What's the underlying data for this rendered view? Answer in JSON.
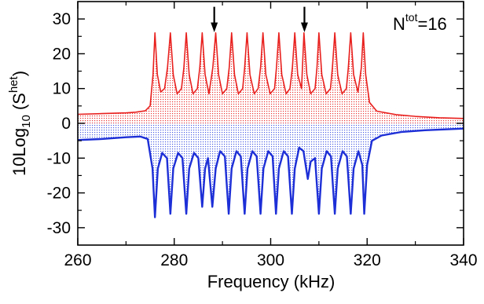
{
  "chart_data": {
    "type": "line",
    "xlabel": "Frequency (kHz)",
    "ylabel": {
      "main": "10Log",
      "sub": "10",
      "paren_open": "(S",
      "sup": "het",
      "paren_close": ")"
    },
    "xlim": [
      260,
      340
    ],
    "ylim": [
      -35,
      35
    ],
    "x_ticks": [
      260,
      280,
      300,
      320,
      340
    ],
    "y_ticks": [
      -30,
      -20,
      -10,
      0,
      10,
      20,
      30
    ],
    "grid": false,
    "annotation": {
      "base": "N",
      "sup": "tot",
      "rest": "=16"
    },
    "arrows_at_x": [
      288.3,
      307.0
    ],
    "fill_baseline": 0,
    "series": [
      {
        "color": "#e8201e",
        "fill_color": "#e8201e",
        "points": [
          [
            260,
            2.6
          ],
          [
            265,
            2.8
          ],
          [
            270,
            3.0
          ],
          [
            272,
            3.2
          ],
          [
            274,
            3.6
          ],
          [
            275,
            5.0
          ],
          [
            275.6,
            14
          ],
          [
            276,
            26
          ],
          [
            276.5,
            14
          ],
          [
            277.2,
            9
          ],
          [
            278.0,
            10
          ],
          [
            278.6,
            16
          ],
          [
            279.2,
            26
          ],
          [
            279.8,
            14
          ],
          [
            280.6,
            8.5
          ],
          [
            281.5,
            10
          ],
          [
            282.0,
            16
          ],
          [
            282.5,
            26
          ],
          [
            283.1,
            14
          ],
          [
            283.9,
            8.5
          ],
          [
            284.8,
            10
          ],
          [
            285.3,
            16
          ],
          [
            285.8,
            26
          ],
          [
            286.4,
            14
          ],
          [
            287.2,
            8.5
          ],
          [
            288.0,
            16
          ],
          [
            288.6,
            26
          ],
          [
            289.2,
            14
          ],
          [
            290.0,
            8.5
          ],
          [
            290.9,
            10
          ],
          [
            291.4,
            16
          ],
          [
            291.9,
            26
          ],
          [
            292.5,
            14
          ],
          [
            293.3,
            8.5
          ],
          [
            294.2,
            10
          ],
          [
            294.6,
            16
          ],
          [
            295.1,
            26
          ],
          [
            295.7,
            14
          ],
          [
            296.6,
            8.5
          ],
          [
            297.4,
            10
          ],
          [
            297.9,
            16
          ],
          [
            298.4,
            26
          ],
          [
            299.0,
            14
          ],
          [
            299.9,
            8.5
          ],
          [
            300.8,
            10
          ],
          [
            301.2,
            16
          ],
          [
            301.7,
            26
          ],
          [
            302.3,
            14
          ],
          [
            303.2,
            8.5
          ],
          [
            304.0,
            10
          ],
          [
            304.5,
            16
          ],
          [
            305.0,
            26
          ],
          [
            305.6,
            14
          ],
          [
            306.4,
            10
          ],
          [
            306.9,
            26
          ],
          [
            307.5,
            14
          ],
          [
            308.3,
            8.5
          ],
          [
            309.2,
            10
          ],
          [
            309.6,
            16
          ],
          [
            310.0,
            26
          ],
          [
            310.6,
            14
          ],
          [
            311.5,
            8.5
          ],
          [
            312.4,
            10
          ],
          [
            312.8,
            16
          ],
          [
            313.3,
            26
          ],
          [
            313.9,
            14
          ],
          [
            314.8,
            8.5
          ],
          [
            315.7,
            10
          ],
          [
            316.1,
            16
          ],
          [
            316.6,
            26
          ],
          [
            317.2,
            14
          ],
          [
            318.1,
            9
          ],
          [
            318.8,
            16
          ],
          [
            319.2,
            26
          ],
          [
            319.7,
            14
          ],
          [
            320.5,
            6
          ],
          [
            322,
            3.5
          ],
          [
            326,
            2.5
          ],
          [
            330,
            2.0
          ],
          [
            335,
            1.6
          ],
          [
            340,
            1.4
          ]
        ]
      },
      {
        "color": "#1d2fd6",
        "fill_color": "#3a4fe0",
        "points": [
          [
            260,
            -4.8
          ],
          [
            265,
            -4.5
          ],
          [
            270,
            -4.0
          ],
          [
            273,
            -3.8
          ],
          [
            274.5,
            -4.5
          ],
          [
            275.5,
            -13
          ],
          [
            276,
            -27
          ],
          [
            276.6,
            -13
          ],
          [
            277.5,
            -8.5
          ],
          [
            278.5,
            -10
          ],
          [
            279.2,
            -26
          ],
          [
            279.8,
            -13
          ],
          [
            280.8,
            -8.5
          ],
          [
            281.7,
            -10
          ],
          [
            282.5,
            -26
          ],
          [
            283.1,
            -13
          ],
          [
            284.1,
            -8.5
          ],
          [
            285.0,
            -10
          ],
          [
            285.8,
            -24
          ],
          [
            286.4,
            -13
          ],
          [
            287.0,
            -10
          ],
          [
            287.9,
            -24
          ],
          [
            288.6,
            -13
          ],
          [
            289.5,
            -8
          ],
          [
            290.5,
            -9.5
          ],
          [
            291.3,
            -26
          ],
          [
            291.9,
            -13
          ],
          [
            292.9,
            -8
          ],
          [
            293.8,
            -9.5
          ],
          [
            294.6,
            -26
          ],
          [
            295.2,
            -13
          ],
          [
            296.2,
            -8
          ],
          [
            297.1,
            -9.5
          ],
          [
            297.9,
            -26
          ],
          [
            298.5,
            -13
          ],
          [
            299.5,
            -8
          ],
          [
            300.4,
            -9.5
          ],
          [
            301.1,
            -26
          ],
          [
            301.7,
            -13
          ],
          [
            302.7,
            -8
          ],
          [
            303.6,
            -9.5
          ],
          [
            304.4,
            -26
          ],
          [
            305.0,
            -13
          ],
          [
            305.9,
            -7
          ],
          [
            306.8,
            -8
          ],
          [
            307.7,
            -16
          ],
          [
            308.3,
            -11
          ],
          [
            309.2,
            -10
          ],
          [
            310.0,
            -26
          ],
          [
            310.6,
            -13
          ],
          [
            311.6,
            -8
          ],
          [
            312.5,
            -9.5
          ],
          [
            313.3,
            -26
          ],
          [
            313.9,
            -13
          ],
          [
            314.9,
            -8
          ],
          [
            315.8,
            -9.5
          ],
          [
            316.6,
            -26
          ],
          [
            317.2,
            -13
          ],
          [
            318.2,
            -8
          ],
          [
            319.0,
            -12
          ],
          [
            319.4,
            -26
          ],
          [
            320.0,
            -12
          ],
          [
            321,
            -5
          ],
          [
            323,
            -3.5
          ],
          [
            327,
            -2.5
          ],
          [
            332,
            -2.0
          ],
          [
            340,
            -1.5
          ]
        ]
      }
    ]
  }
}
